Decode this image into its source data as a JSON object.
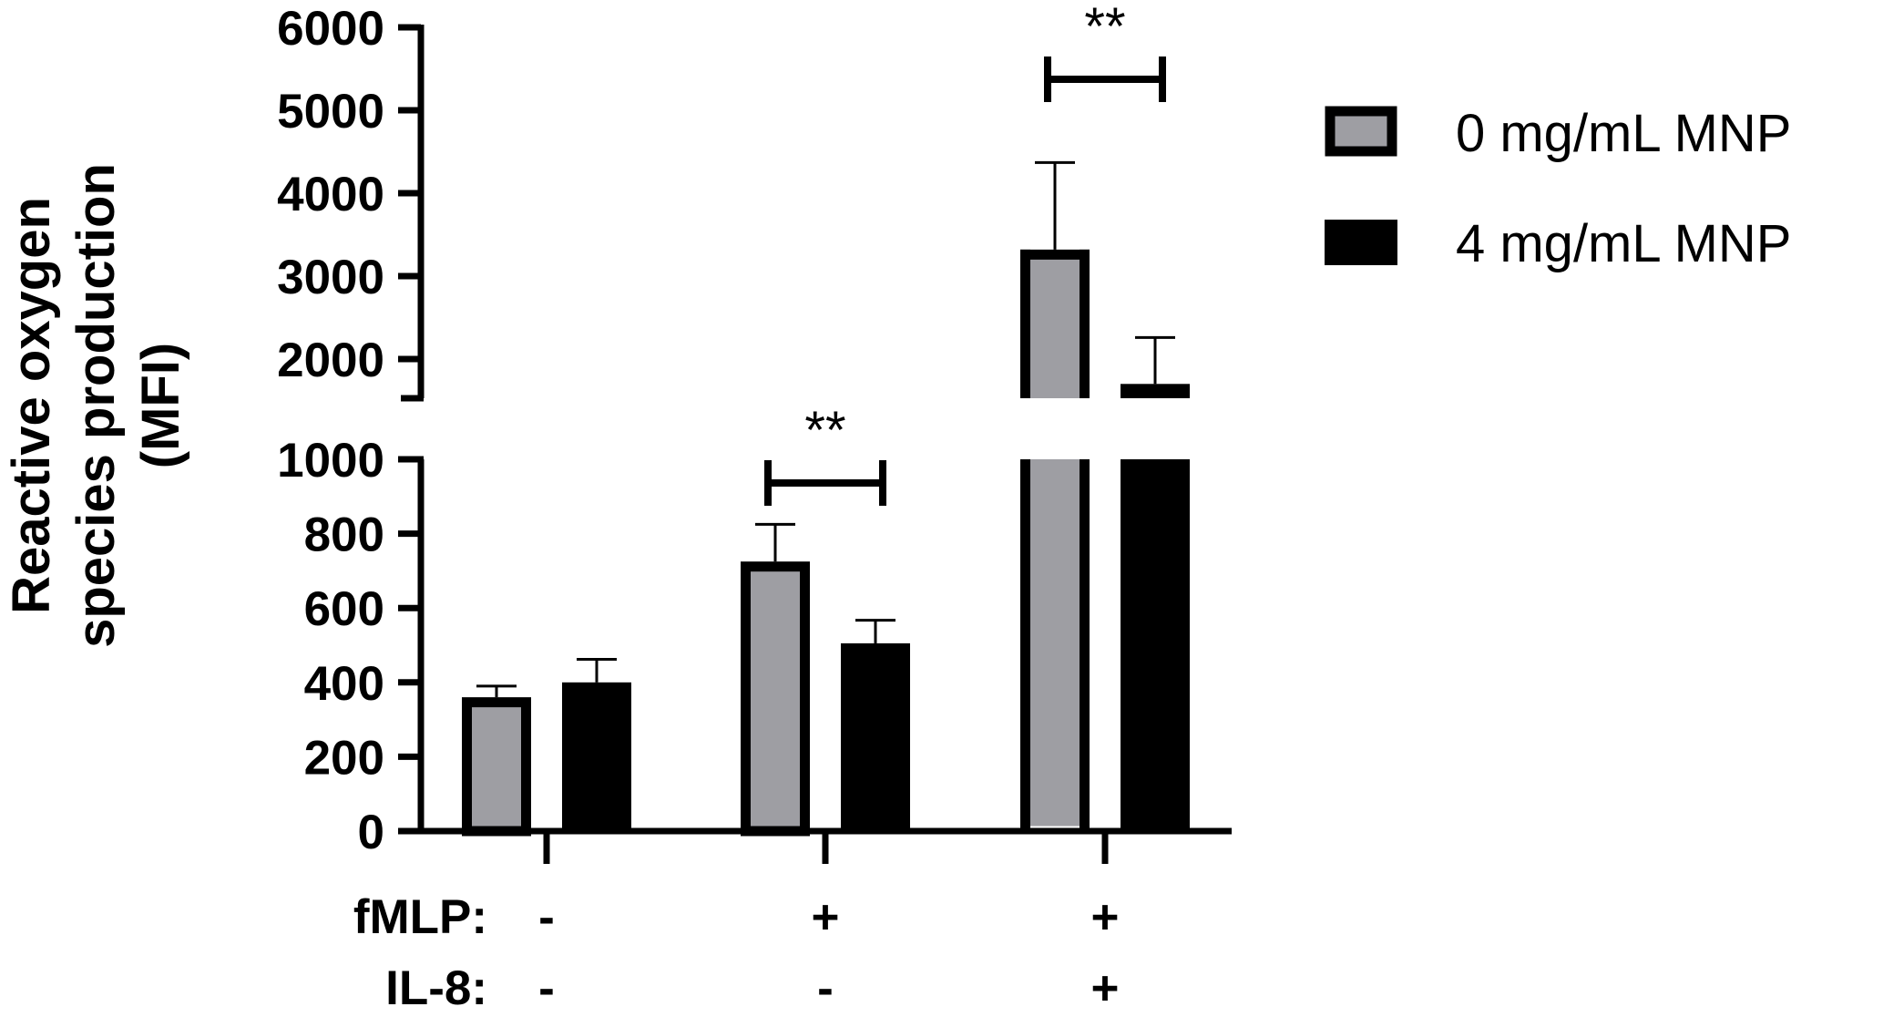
{
  "chart_data": {
    "type": "bar",
    "xlabel": "",
    "ylabel_lines": [
      "Reactive oxygen",
      "species production",
      "(MFI)"
    ],
    "y_axis": {
      "broken": true,
      "lower_segment": {
        "range": [
          0,
          1000
        ],
        "ticks": [
          0,
          200,
          400,
          600,
          800,
          1000
        ]
      },
      "upper_segment": {
        "range": [
          1500,
          6000
        ],
        "ticks": [
          2000,
          3000,
          4000,
          5000,
          6000
        ]
      }
    },
    "grid": false,
    "categories": [
      {
        "fMLP": "-",
        "IL8": "-"
      },
      {
        "fMLP": "+",
        "IL8": "-"
      },
      {
        "fMLP": "+",
        "IL8": "+"
      }
    ],
    "row_labels": [
      "fMLP:",
      "IL-8:"
    ],
    "series": [
      {
        "name": "0 mg/mL MNP",
        "color": "#9e9ea3",
        "edge": "#000000",
        "values": [
          360,
          725,
          3320
        ],
        "errors": [
          30,
          100,
          1050
        ]
      },
      {
        "name": "4 mg/mL MNP",
        "color": "#000000",
        "edge": "#000000",
        "values": [
          400,
          505,
          1700
        ],
        "errors": [
          62,
          62,
          560
        ]
      }
    ],
    "annotations": [
      {
        "text": "**",
        "category_index": 1
      },
      {
        "text": "**",
        "category_index": 2
      }
    ],
    "legend_position": "top-right"
  }
}
